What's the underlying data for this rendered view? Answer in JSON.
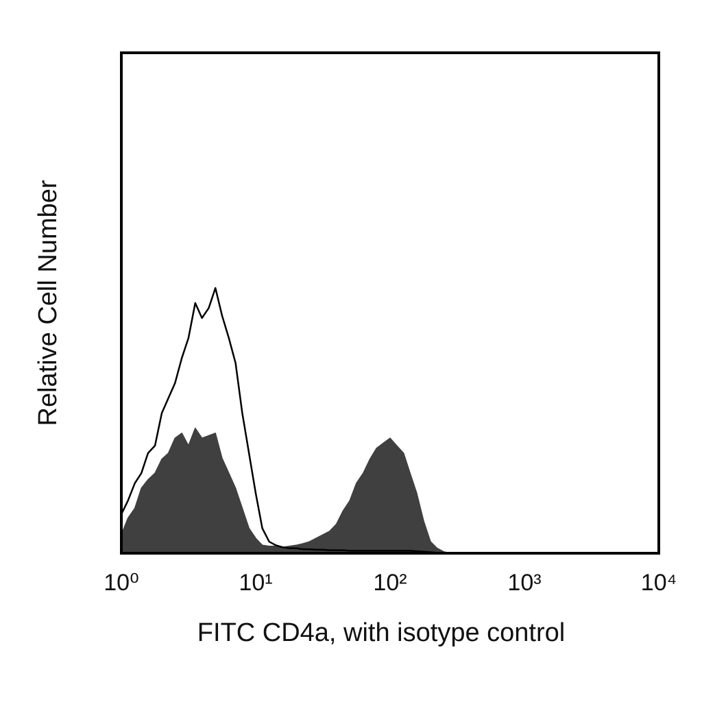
{
  "chart_data": {
    "type": "histogram-overlay",
    "xlabel": "FITC CD4a, with isotype control",
    "ylabel": "Relative Cell Number",
    "xscale": "log",
    "xlim": [
      1,
      10000
    ],
    "xticks": [
      {
        "value": 1,
        "label": "10⁰"
      },
      {
        "value": 10,
        "label": "10¹"
      },
      {
        "value": 100,
        "label": "10²"
      },
      {
        "value": 1000,
        "label": "10³"
      },
      {
        "value": 10000,
        "label": "10⁴"
      }
    ],
    "ylim": [
      0,
      100
    ],
    "x": [
      1,
      1.12,
      1.26,
      1.41,
      1.58,
      1.78,
      2.0,
      2.24,
      2.51,
      2.82,
      3.16,
      3.55,
      3.98,
      4.47,
      5.01,
      5.62,
      6.31,
      7.08,
      7.94,
      8.91,
      10,
      11.2,
      12.6,
      14.1,
      15.8,
      17.8,
      20,
      22.4,
      25.1,
      28.2,
      31.6,
      35.5,
      39.8,
      44.7,
      50.1,
      56.2,
      63.1,
      70.8,
      79.4,
      89.1,
      100,
      112,
      126,
      141,
      158,
      178,
      200,
      224,
      251,
      282
    ],
    "series": [
      {
        "color": "#404040",
        "filled": true,
        "values": [
          3.7,
          7,
          9,
          13,
          14.7,
          16,
          18.8,
          20,
          23,
          24,
          21.5,
          25,
          23,
          23.5,
          24,
          19,
          16,
          13,
          9,
          5,
          3,
          1.6,
          1.4,
          1.4,
          1.2,
          1.4,
          1.6,
          1.9,
          2.3,
          3,
          3.7,
          4.4,
          5.8,
          8.5,
          10.5,
          14,
          16,
          18.8,
          21,
          22,
          23,
          21.5,
          20,
          16,
          12,
          6.4,
          2.3,
          1,
          0.3,
          0
        ]
      },
      {
        "color": "#000000",
        "filled": false,
        "values": [
          7.8,
          10.5,
          14,
          16,
          20,
          21.5,
          28,
          31,
          34,
          39,
          43,
          50,
          47,
          49,
          53,
          47.5,
          43,
          38,
          28,
          20,
          12,
          5,
          2.3,
          1.6,
          1.2,
          1,
          1,
          0.8,
          0.8,
          0.7,
          0.7,
          0.6,
          0.6,
          0.6,
          0.5,
          0.5,
          0.5,
          0.5,
          0.5,
          0.5,
          0.5,
          0.5,
          0.5,
          0.5,
          0.4,
          0.3,
          0.2,
          0.1,
          0,
          0
        ]
      }
    ]
  }
}
